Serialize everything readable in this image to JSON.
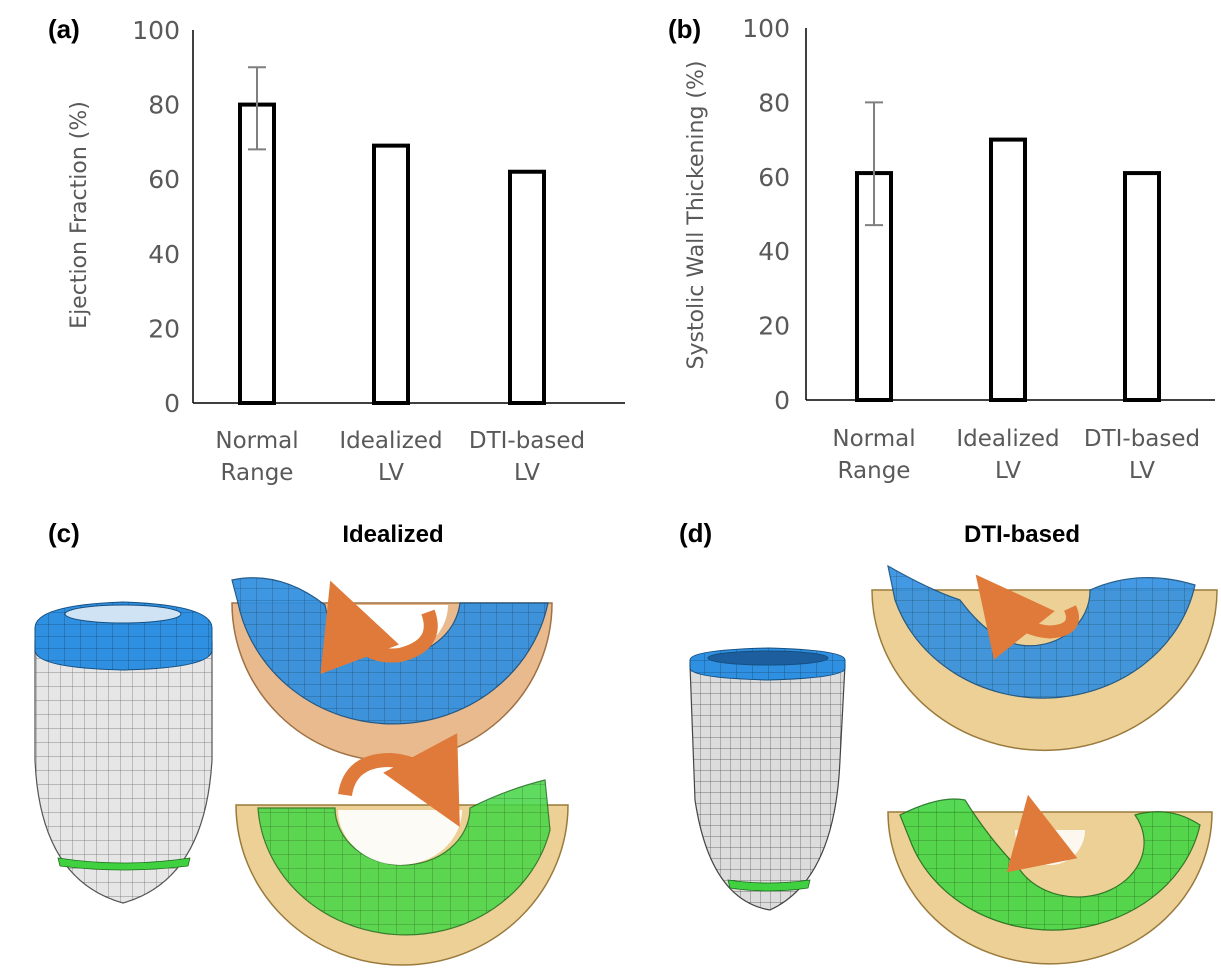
{
  "chart_data": [
    {
      "type": "bar",
      "panel_label": "(a)",
      "categories": [
        [
          "Normal",
          "Range"
        ],
        [
          "Idealized",
          "LV"
        ],
        [
          "DTI-based",
          "LV"
        ]
      ],
      "values": [
        80,
        69,
        62
      ],
      "error_bars": [
        [
          68,
          90
        ],
        null,
        null
      ],
      "ylabel": "Ejection Fraction (%)",
      "ylim": [
        0,
        100
      ],
      "yticks": [
        "0",
        "20",
        "40",
        "60",
        "80",
        "100"
      ],
      "grid": false
    },
    {
      "type": "bar",
      "panel_label": "(b)",
      "categories": [
        [
          "Normal",
          "Range"
        ],
        [
          "Idealized",
          "LV"
        ],
        [
          "DTI-based",
          "LV"
        ]
      ],
      "values": [
        61,
        70,
        61
      ],
      "error_bars": [
        [
          47,
          80
        ],
        null,
        null
      ],
      "ylabel": "Systolic Wall Thickening (%)",
      "ylim": [
        0,
        100
      ],
      "yticks": [
        "0",
        "20",
        "40",
        "60",
        "80",
        "100"
      ],
      "grid": false
    }
  ],
  "panels": {
    "c": {
      "label": "(c)",
      "title": "Idealized"
    },
    "d": {
      "label": "(d)",
      "title": "DTI-based"
    }
  },
  "colors": {
    "mesh_gray": "#e0e0e0",
    "mesh_line": "#555555",
    "blue_band": "#2a86d8",
    "green_band": "#3fd13f",
    "tan_ref": "#e8c98a",
    "arrow_orange": "#e07a3a"
  }
}
